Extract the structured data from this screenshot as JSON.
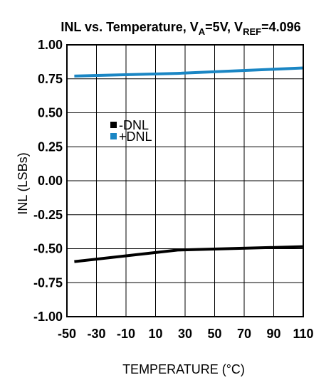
{
  "chart_data": {
    "type": "line",
    "title": {
      "prefix": "INL vs. Temperature, V",
      "sub1": "A",
      "mid": "=5V, V",
      "sub2": "REF",
      "suffix": "=4.096"
    },
    "xlabel": "TEMPERATURE (°C)",
    "ylabel": "INL (LSBs)",
    "xlim": [
      -50,
      110
    ],
    "ylim": [
      -1.0,
      1.0
    ],
    "x_ticks": [
      -50,
      -30,
      -10,
      10,
      30,
      50,
      70,
      90,
      110
    ],
    "x_tick_labels": [
      "-50",
      "-30",
      "-10",
      "10",
      "30",
      "50",
      "70",
      "90",
      "110"
    ],
    "y_ticks": [
      1.0,
      0.75,
      0.5,
      0.25,
      0.0,
      -0.25,
      -0.5,
      -0.75,
      -1.0
    ],
    "y_tick_labels": [
      "1.00",
      "0.75",
      "0.50",
      "0.25",
      "0.00",
      "-0.25",
      "-0.50",
      "-0.75",
      "-1.00"
    ],
    "grid": true,
    "legend_position": "upper-left inside plot",
    "series": [
      {
        "name": "-DNL",
        "color": "#000000",
        "x": [
          -45,
          25,
          110
        ],
        "y": [
          -0.595,
          -0.51,
          -0.485
        ]
      },
      {
        "name": "+DNL",
        "color": "#1a86c4",
        "x": [
          -45,
          25,
          110
        ],
        "y": [
          0.77,
          0.79,
          0.83
        ]
      }
    ]
  }
}
